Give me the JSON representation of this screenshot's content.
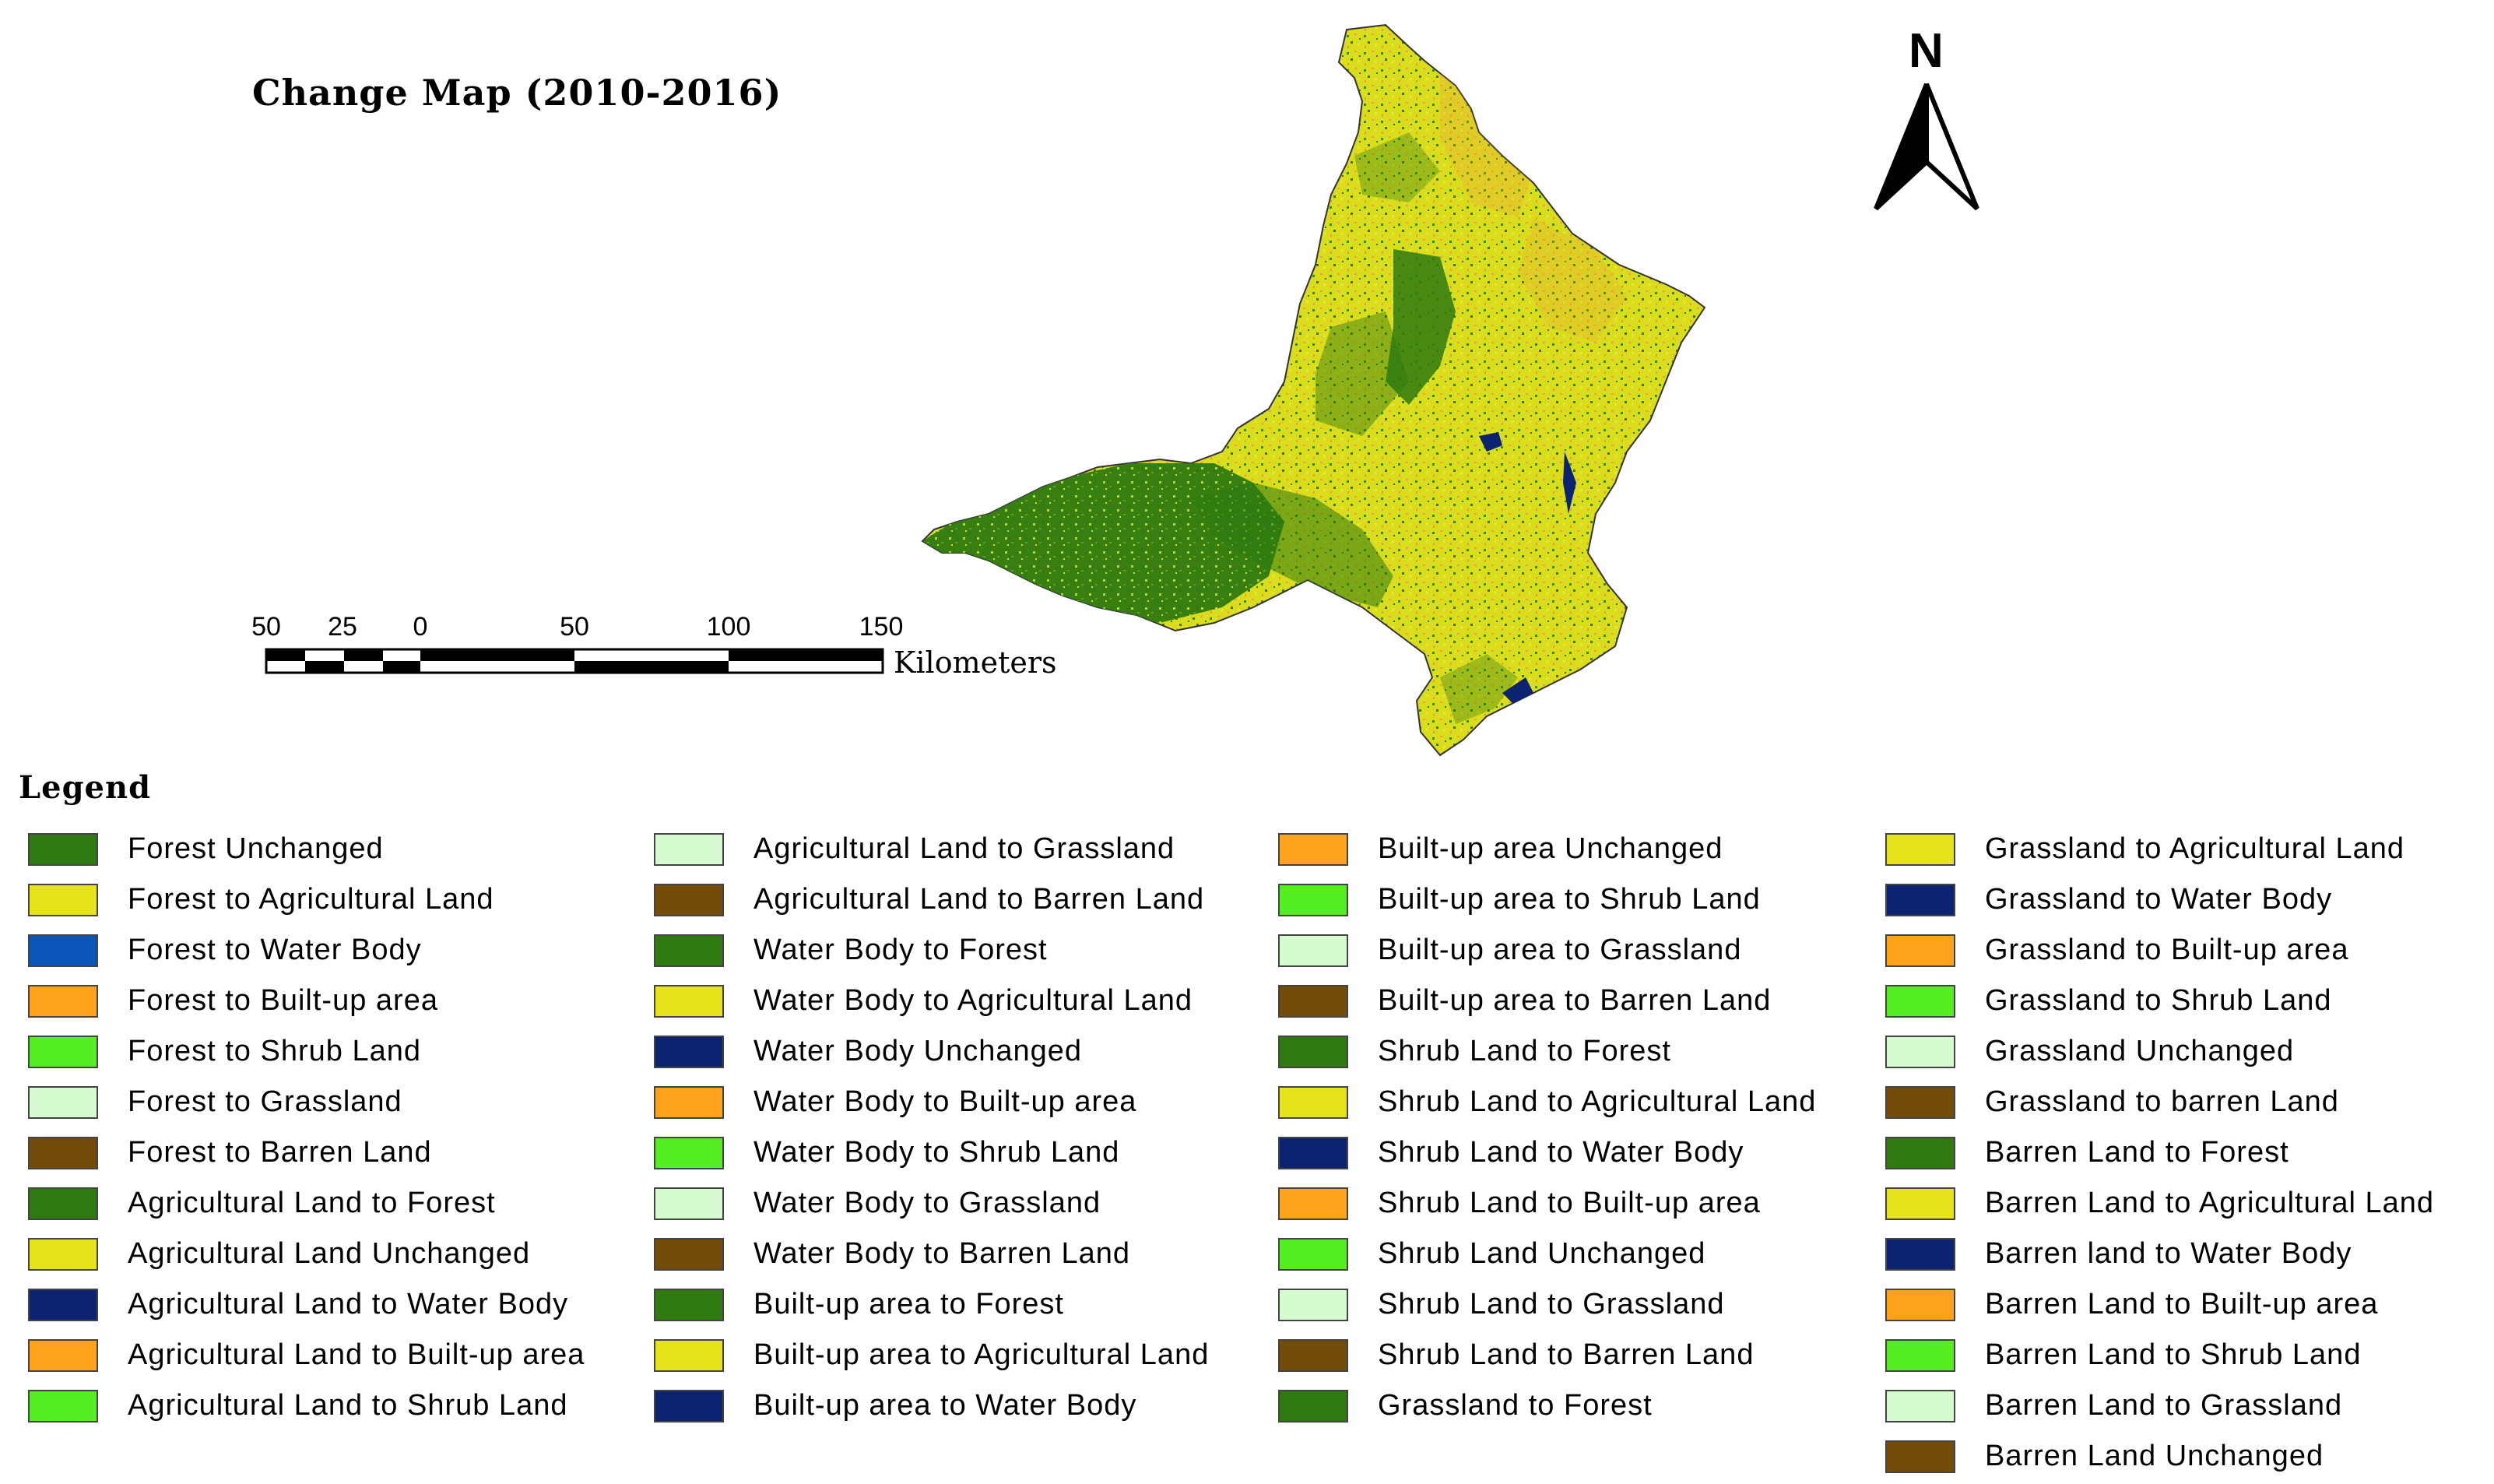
{
  "title": "Change Map (2010-2016)",
  "north_label": "N",
  "scale_bar": {
    "labels": [
      "50",
      "25",
      "0",
      "50",
      "100",
      "150"
    ],
    "unit": "Kilometers"
  },
  "legend": {
    "title": "Legend",
    "columns": [
      [
        {
          "label": "Forest Unchanged",
          "color": "#2e7a10"
        },
        {
          "label": "Forest to Agricultural Land",
          "color": "#e6e31a"
        },
        {
          "label": "Forest to Water Body",
          "color": "#0a55b8"
        },
        {
          "label": "Forest to Built-up area",
          "color": "#ffa41a"
        },
        {
          "label": "Forest to Shrub Land",
          "color": "#55ee22"
        },
        {
          "label": "Forest to Grassland",
          "color": "#d6fbd0"
        },
        {
          "label": "Forest to Barren Land",
          "color": "#734c0a"
        },
        {
          "label": "Agricultural Land to Forest",
          "color": "#2e7a10"
        },
        {
          "label": "Agricultural Land Unchanged",
          "color": "#e6e31a"
        },
        {
          "label": "Agricultural Land to Water Body",
          "color": "#0b2370"
        },
        {
          "label": "Agricultural Land to Built-up area",
          "color": "#ffa41a"
        },
        {
          "label": "Agricultural Land to Shrub Land",
          "color": "#55ee22"
        }
      ],
      [
        {
          "label": "Agricultural Land to Grassland",
          "color": "#d6fbd0"
        },
        {
          "label": "Agricultural Land to Barren Land",
          "color": "#734c0a"
        },
        {
          "label": "Water Body to Forest",
          "color": "#2e7a10"
        },
        {
          "label": "Water Body to Agricultural Land",
          "color": "#e6e31a"
        },
        {
          "label": "Water Body Unchanged",
          "color": "#0b2370"
        },
        {
          "label": "Water Body to Built-up area",
          "color": "#ffa41a"
        },
        {
          "label": "Water Body to Shrub Land",
          "color": "#55ee22"
        },
        {
          "label": "Water Body to Grassland",
          "color": "#d6fbd0"
        },
        {
          "label": "Water Body to Barren Land",
          "color": "#734c0a"
        },
        {
          "label": "Built-up area to Forest",
          "color": "#2e7a10"
        },
        {
          "label": "Built-up area to Agricultural Land",
          "color": "#e6e31a"
        },
        {
          "label": "Built-up area to Water Body",
          "color": "#0b2370"
        }
      ],
      [
        {
          "label": "Built-up area Unchanged",
          "color": "#ffa41a"
        },
        {
          "label": "Built-up area to Shrub Land",
          "color": "#55ee22"
        },
        {
          "label": "Built-up area to Grassland",
          "color": "#d6fbd0"
        },
        {
          "label": "Built-up area to Barren Land",
          "color": "#734c0a"
        },
        {
          "label": "Shrub Land to Forest",
          "color": "#2e7a10"
        },
        {
          "label": "Shrub Land to Agricultural Land",
          "color": "#e6e31a"
        },
        {
          "label": "Shrub Land to Water Body",
          "color": "#0b2370"
        },
        {
          "label": "Shrub Land to Built-up area",
          "color": "#ffa41a"
        },
        {
          "label": "Shrub Land Unchanged",
          "color": "#55ee22"
        },
        {
          "label": "Shrub Land to Grassland",
          "color": "#d6fbd0"
        },
        {
          "label": "Shrub Land to Barren Land",
          "color": "#734c0a"
        },
        {
          "label": "Grassland to Forest",
          "color": "#2e7a10"
        }
      ],
      [
        {
          "label": "Grassland to Agricultural Land",
          "color": "#e6e31a"
        },
        {
          "label": "Grassland to Water Body",
          "color": "#0b2370"
        },
        {
          "label": "Grassland to Built-up area",
          "color": "#ffa41a"
        },
        {
          "label": "Grassland to Shrub Land",
          "color": "#55ee22"
        },
        {
          "label": "Grassland Unchanged",
          "color": "#d6fbd0"
        },
        {
          "label": "Grassland to barren Land",
          "color": "#734c0a"
        },
        {
          "label": "Barren Land to Forest",
          "color": "#2e7a10"
        },
        {
          "label": "Barren Land to Agricultural Land",
          "color": "#e6e31a"
        },
        {
          "label": "Barren land to Water Body",
          "color": "#0b2370"
        },
        {
          "label": "Barren Land to Built-up area",
          "color": "#ffa41a"
        },
        {
          "label": "Barren Land to Shrub Land",
          "color": "#55ee22"
        },
        {
          "label": "Barren Land to Grassland",
          "color": "#d6fbd0"
        },
        {
          "label": "Barren Land Unchanged",
          "color": "#734c0a"
        }
      ]
    ]
  }
}
